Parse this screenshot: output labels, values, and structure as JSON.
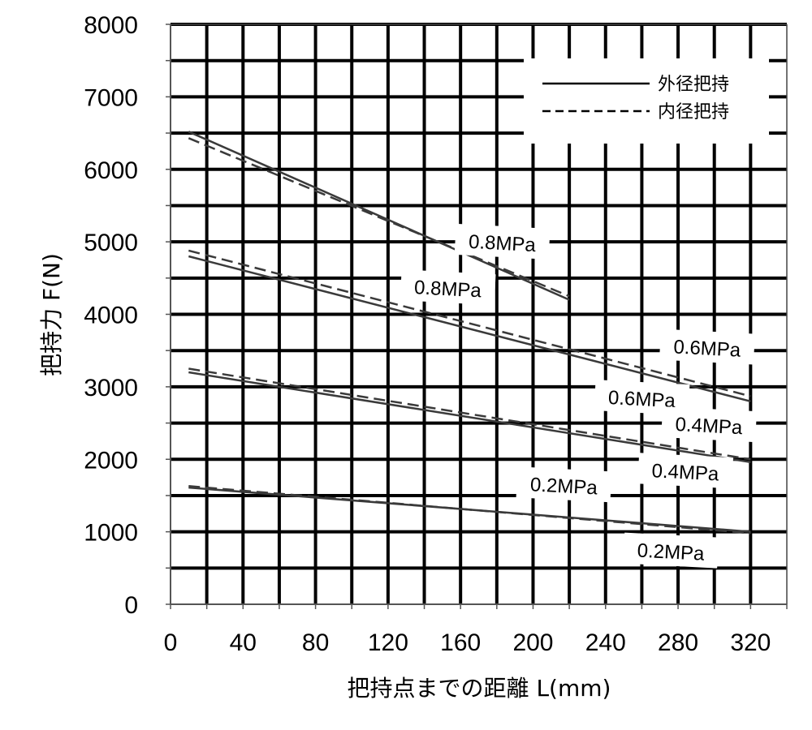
{
  "chart_data": {
    "type": "line",
    "xlabel": "把持点までの距離 L(mm)",
    "ylabel": "把持力 F(N)",
    "xlim": [
      0,
      340
    ],
    "ylim": [
      0,
      8000
    ],
    "xticks": [
      0,
      40,
      80,
      120,
      160,
      200,
      240,
      280,
      320
    ],
    "yticks": [
      0,
      1000,
      2000,
      3000,
      4000,
      5000,
      6000,
      7000,
      8000
    ],
    "grid": true,
    "legend": {
      "placement": "top-right",
      "entries": [
        {
          "label": "外径把持",
          "style": "solid"
        },
        {
          "label": "内径把持",
          "style": "dashed"
        }
      ]
    },
    "series": [
      {
        "group": "外径把持",
        "pressure": "0.8MPa",
        "style": "solid",
        "x": [
          10,
          220
        ],
        "y": [
          6520,
          4200
        ]
      },
      {
        "group": "内径把持",
        "pressure": "0.8MPa",
        "style": "dashed",
        "x": [
          10,
          220
        ],
        "y": [
          6430,
          4250
        ]
      },
      {
        "group": "外径把持",
        "pressure": "0.6MPa",
        "style": "solid",
        "x": [
          10,
          320
        ],
        "y": [
          4800,
          2800
        ]
      },
      {
        "group": "内径把持",
        "pressure": "0.6MPa",
        "style": "dashed",
        "x": [
          10,
          320
        ],
        "y": [
          4880,
          2870
        ]
      },
      {
        "group": "外径把持",
        "pressure": "0.4MPa",
        "style": "solid",
        "x": [
          10,
          320
        ],
        "y": [
          3200,
          1960
        ]
      },
      {
        "group": "内径把持",
        "pressure": "0.4MPa",
        "style": "dashed",
        "x": [
          10,
          320
        ],
        "y": [
          3250,
          2000
        ]
      },
      {
        "group": "外径把持",
        "pressure": "0.2MPa",
        "style": "solid",
        "x": [
          10,
          320
        ],
        "y": [
          1610,
          1000
        ]
      },
      {
        "group": "内径把持",
        "pressure": "0.2MPa",
        "style": "dashed",
        "x": [
          10,
          320
        ],
        "y": [
          1630,
          980
        ]
      }
    ],
    "annotations": [
      {
        "text": "0.8MPa",
        "x": 183,
        "y": 4980,
        "rotate": 3
      },
      {
        "text": "0.8MPa",
        "x": 153,
        "y": 4350,
        "rotate": 3
      },
      {
        "text": "0.6MPa",
        "x": 296,
        "y": 3530,
        "rotate": 3
      },
      {
        "text": "0.6MPa",
        "x": 260,
        "y": 2830,
        "rotate": 3
      },
      {
        "text": "0.4MPa",
        "x": 297,
        "y": 2460,
        "rotate": 3
      },
      {
        "text": "0.4MPa",
        "x": 284,
        "y": 1820,
        "rotate": 3
      },
      {
        "text": "0.2MPa",
        "x": 217,
        "y": 1630,
        "rotate": 3
      },
      {
        "text": "0.2MPa",
        "x": 276,
        "y": 720,
        "rotate": 3
      }
    ]
  }
}
